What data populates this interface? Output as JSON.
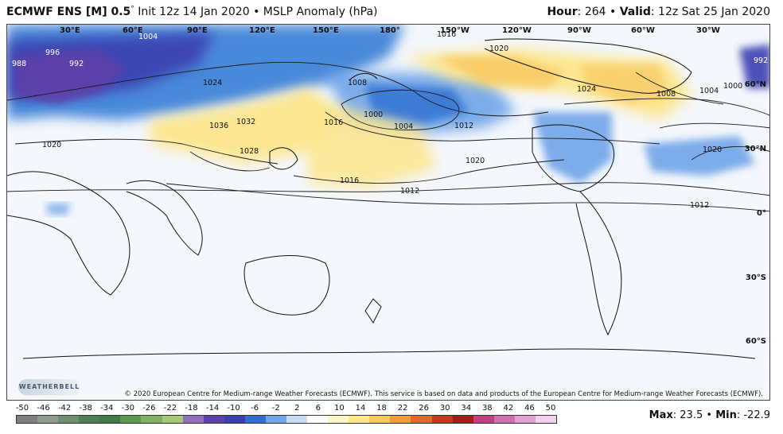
{
  "header": {
    "model": "ECMWF ENS [M] 0.5",
    "deg_symbol": "°",
    "init": "Init 12z 14 Jan 2020",
    "bullet": "•",
    "field": "MSLP Anomaly (hPa)",
    "hour_label": "Hour",
    "hour_value": ": 264",
    "valid_label": "Valid",
    "valid_value": ": 12z Sat 25 Jan 2020"
  },
  "longitude_labels": [
    "30°E",
    "60°E",
    "90°E",
    "120°E",
    "150°E",
    "180°",
    "150°W",
    "120°W",
    "90°W",
    "60°W",
    "30°W"
  ],
  "latitude_labels": [
    "60°N",
    "30°N",
    "0°",
    "30°S",
    "60°S"
  ],
  "isobar_labels": [
    "1004",
    "996",
    "988",
    "992",
    "1024",
    "1036",
    "1028",
    "1020",
    "1032",
    "1008",
    "1000",
    "1004",
    "1016",
    "1012",
    "1020",
    "1016",
    "1012",
    "1024",
    "1008",
    "1004",
    "1000",
    "1020",
    "992",
    "1012",
    "1016",
    "1020"
  ],
  "copyright": "© 2020 European Centre for Medium-range Weather Forecasts (ECMWF). This service is based on data and products of the European Centre for Medium-range Weather Forecasts (ECMWF).",
  "logo_text": "WEATHERBELL",
  "colorbar": {
    "ticks": [
      "-50",
      "-46",
      "-42",
      "-38",
      "-34",
      "-30",
      "-26",
      "-22",
      "-18",
      "-14",
      "-10",
      "-6",
      "-2",
      "2",
      "6",
      "10",
      "14",
      "18",
      "22",
      "26",
      "30",
      "34",
      "38",
      "42",
      "46",
      "50"
    ],
    "colors": [
      "#7f7f7f",
      "#8f9a8f",
      "#6e8c6e",
      "#4f7f55",
      "#3f7a48",
      "#5a9a50",
      "#7fb060",
      "#a6c878",
      "#8e6fb8",
      "#5f3fa8",
      "#3a3fb0",
      "#2f6fd0",
      "#6fa4e8",
      "#c8dcf4",
      "#ffffff",
      "#fff6c8",
      "#fde68c",
      "#f8c860",
      "#f29a3c",
      "#e86428",
      "#d4301c",
      "#b01818",
      "#c04080",
      "#d070b0",
      "#e0a0d0",
      "#f0d0ec"
    ]
  },
  "stats": {
    "max_label": "Max",
    "max_value": ": 23.5",
    "bullet": "•",
    "min_label": "Min",
    "min_value": ": -22.9"
  }
}
